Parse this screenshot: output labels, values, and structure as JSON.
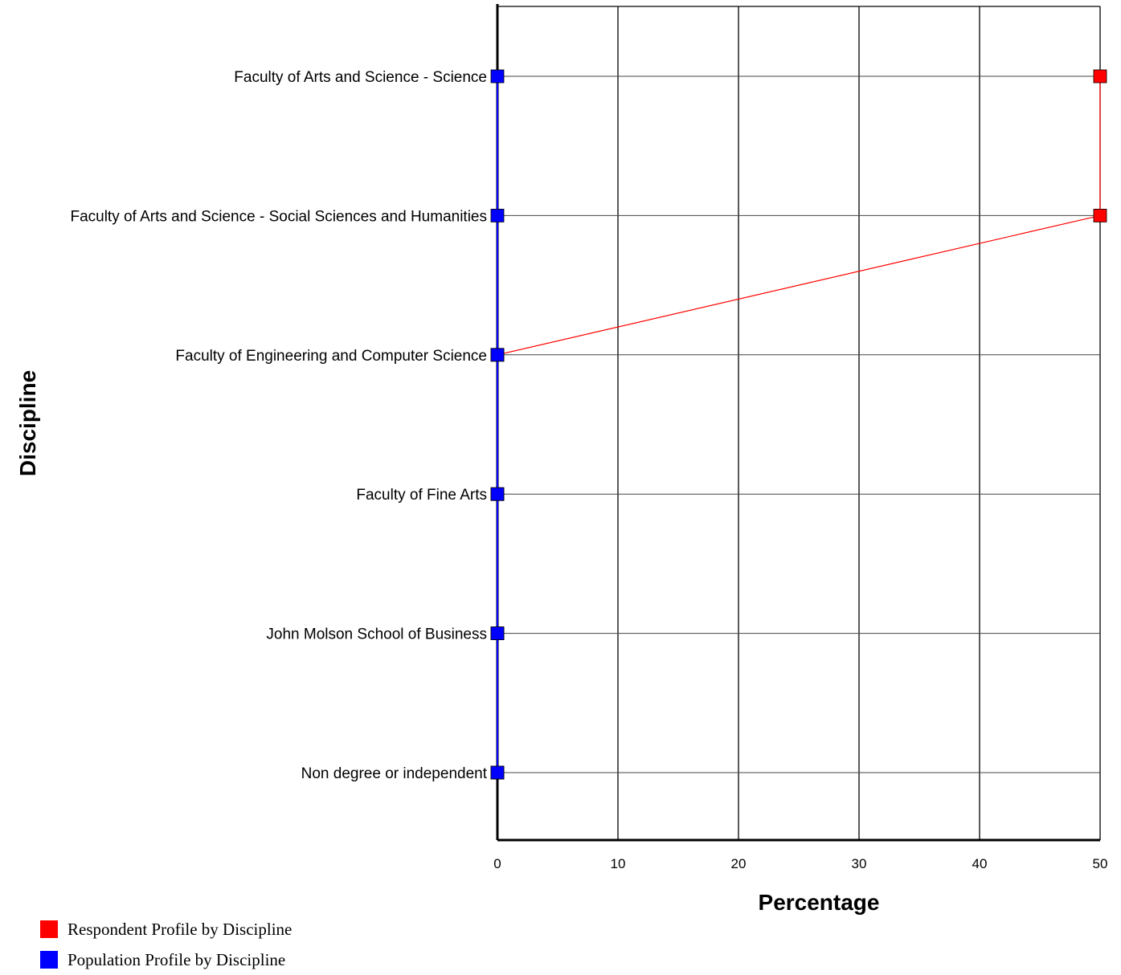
{
  "chart_data": {
    "type": "line",
    "orientation": "horizontal",
    "categories": [
      "Faculty of Arts and Science - Science",
      "Faculty of Arts and Science - Social Sciences and Humanities",
      "Faculty of Engineering and Computer Science",
      "Faculty of Fine Arts",
      "John Molson School of Business",
      "Non degree or independent"
    ],
    "series": [
      {
        "name": "Respondent Profile by Discipline",
        "color": "#ff0000",
        "values": [
          50,
          50,
          0,
          0,
          0,
          0
        ]
      },
      {
        "name": "Population Profile by Discipline",
        "color": "#0000ff",
        "values": [
          0,
          0,
          0,
          0,
          0,
          0
        ]
      }
    ],
    "xlabel": "Percentage",
    "ylabel": "Discipline",
    "xlim": [
      0,
      50
    ],
    "xticks": [
      "0",
      "10",
      "20",
      "30",
      "40",
      "50"
    ],
    "grid": true,
    "legend_position": "bottom-left"
  }
}
